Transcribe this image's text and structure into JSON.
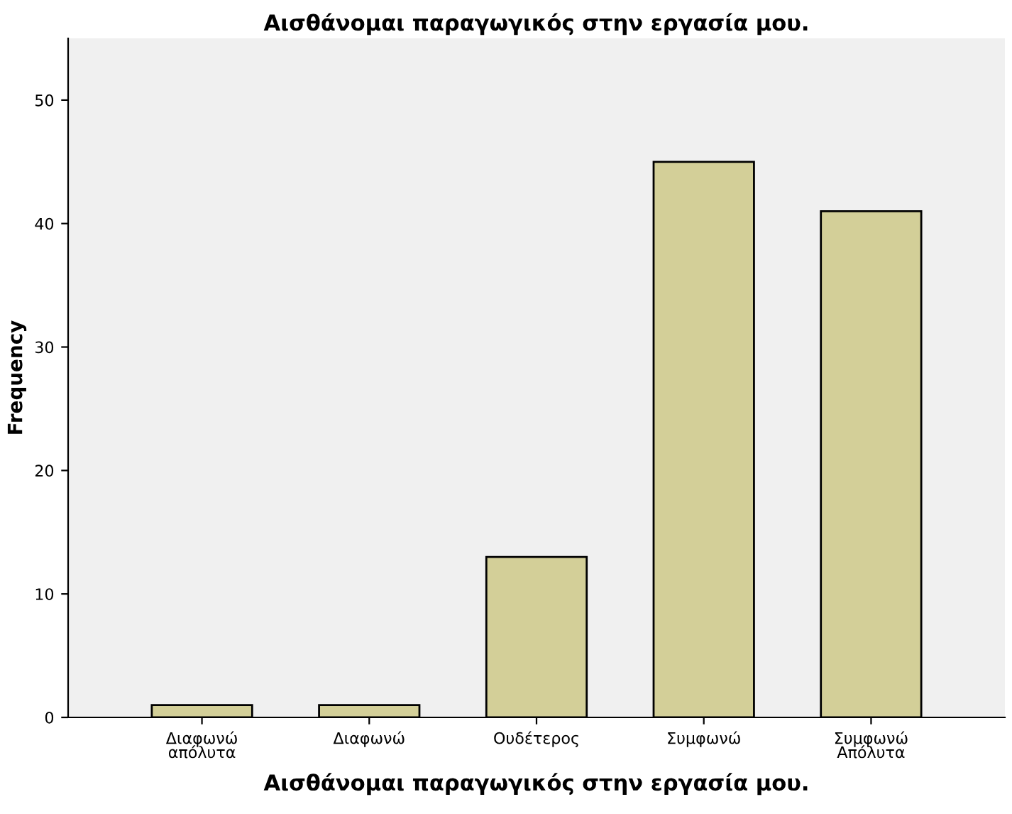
{
  "chart_data": {
    "type": "bar",
    "title": "Αισθάνομαι παραγωγικός στην εργασία μου.",
    "xlabel": "Αισθάνομαι παραγωγικός στην εργασία μου.",
    "ylabel": "Frequency",
    "categories": [
      "Διαφωνώ\nαπόλυτα",
      "Διαφωνώ",
      "Ουδέτερος",
      "Συμφωνώ",
      "Συμφωνώ\nΑπόλυτα"
    ],
    "values": [
      1,
      1,
      13,
      45,
      41
    ],
    "color": "#d3cf98",
    "ylim": [
      0,
      55
    ],
    "yticks": [
      0,
      10,
      20,
      30,
      40,
      50
    ],
    "grid": false,
    "legend": false
  }
}
